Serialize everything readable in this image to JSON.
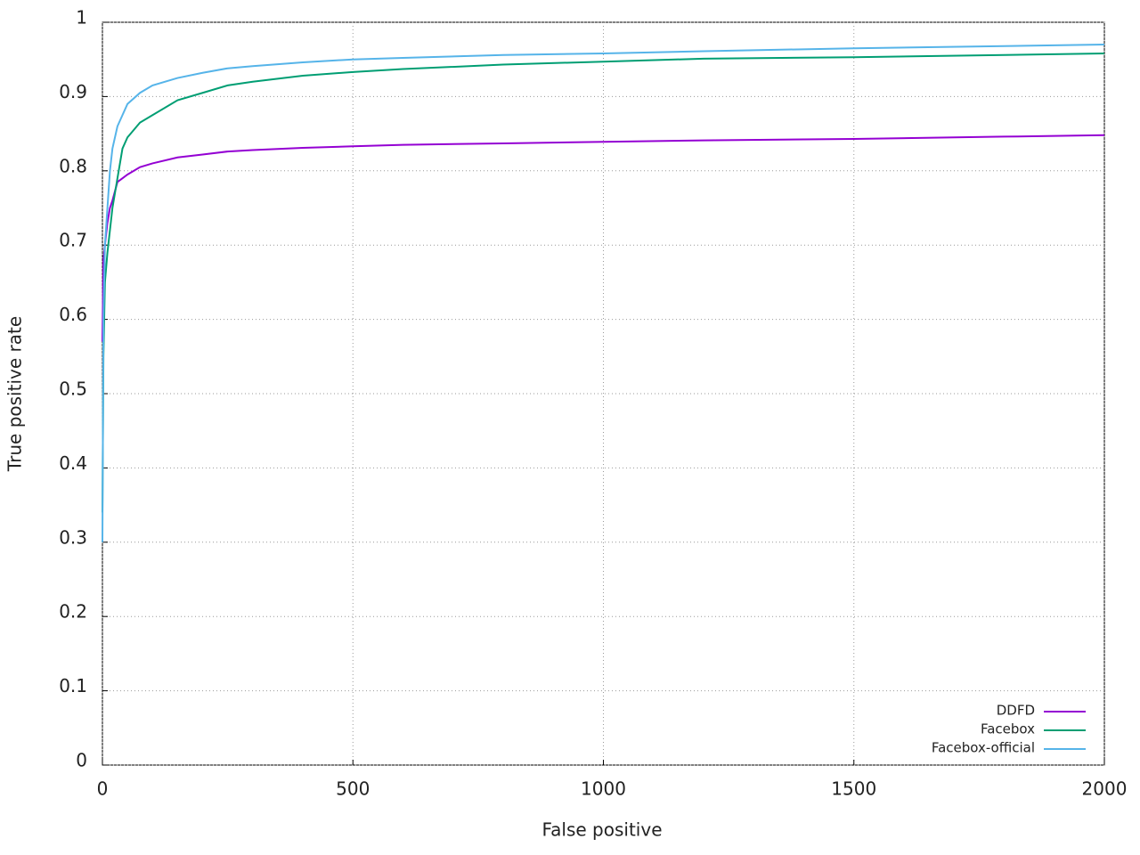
{
  "chart_data": {
    "type": "line",
    "xlabel": "False positive",
    "ylabel": "True positive rate",
    "x": [
      0,
      2,
      5,
      10,
      15,
      20,
      30,
      40,
      50,
      75,
      100,
      150,
      200,
      250,
      300,
      400,
      500,
      600,
      800,
      1000,
      1200,
      1500,
      1800,
      2000
    ],
    "series": [
      {
        "name": "DDFD",
        "color": "#9400d3",
        "values": [
          0.57,
          0.68,
          0.7,
          0.73,
          0.75,
          0.76,
          0.785,
          0.79,
          0.795,
          0.805,
          0.81,
          0.818,
          0.822,
          0.826,
          0.828,
          0.831,
          0.833,
          0.835,
          0.837,
          0.839,
          0.841,
          0.843,
          0.846,
          0.848
        ]
      },
      {
        "name": "Facebox",
        "color": "#009e73",
        "values": [
          0.34,
          0.55,
          0.65,
          0.69,
          0.72,
          0.75,
          0.79,
          0.83,
          0.845,
          0.865,
          0.875,
          0.895,
          0.905,
          0.915,
          0.92,
          0.928,
          0.933,
          0.937,
          0.943,
          0.947,
          0.951,
          0.953,
          0.956,
          0.958
        ]
      },
      {
        "name": "Facebox-official",
        "color": "#56b4e9",
        "values": [
          0.3,
          0.6,
          0.7,
          0.75,
          0.8,
          0.83,
          0.86,
          0.875,
          0.89,
          0.905,
          0.915,
          0.925,
          0.932,
          0.938,
          0.941,
          0.946,
          0.95,
          0.952,
          0.956,
          0.958,
          0.961,
          0.965,
          0.968,
          0.97
        ]
      }
    ],
    "xlim": [
      0,
      2000
    ],
    "xticks": [
      0,
      500,
      1000,
      1500,
      2000
    ],
    "ylim": [
      0,
      1
    ],
    "yticks": [
      0,
      0.1,
      0.2,
      0.3,
      0.4,
      0.5,
      0.6,
      0.7,
      0.8,
      0.9,
      1
    ],
    "grid": true,
    "legend": "bottom-right"
  }
}
